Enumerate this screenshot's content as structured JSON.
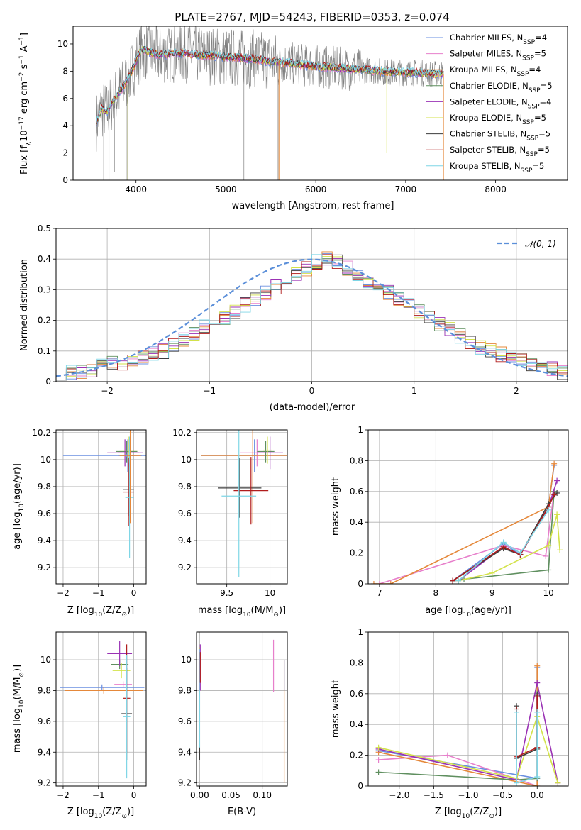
{
  "figure": {
    "title": "PLATE=2767, MJD=54243, FIBERID=0353, z=0.074"
  },
  "colors": {
    "chabrier_miles": "#6a8fe0",
    "salpeter_miles": "#e77fcb",
    "kroupa_miles": "#e5883a",
    "chabrier_elodie": "#5f8f5f",
    "salpeter_elodie": "#9a32b4",
    "kroupa_elodie": "#d3e24a",
    "chabrier_stelib": "#3c3c3c",
    "salpeter_stelib": "#b01c1c",
    "kroupa_stelib": "#7fd6e6",
    "data_gray": "#808080",
    "normal_curve": "#5b8fd9",
    "grid": "#b0b0b0"
  },
  "chart_data": [
    {
      "id": "spectrum",
      "type": "line",
      "xlabel": "wavelength [Angstrom, rest frame]",
      "ylabel": "Flux [f",
      "ylabel_sub": "λ",
      "ylabel_mid": "10",
      "ylabel_sup1": "−17",
      "ylabel_mid2": " erg cm",
      "ylabel_sup2": "−2",
      "ylabel_mid3": " s",
      "ylabel_sup3": "−1",
      "ylabel_mid4": " A",
      "ylabel_sup4": "−1",
      "ylabel_end": "]",
      "xlim": [
        3300,
        8800
      ],
      "ylim": [
        0,
        11.3
      ],
      "xticks": [
        4000,
        5000,
        6000,
        7000,
        8000
      ],
      "yticks": [
        0,
        2,
        4,
        6,
        8,
        10
      ],
      "grid": false,
      "legend_position": "top-right",
      "model_continuum": {
        "x": [
          3560,
          3620,
          3680,
          3740,
          3800,
          3860,
          3920,
          3980,
          4060,
          4150,
          4250,
          4400,
          4550,
          4700,
          4900,
          5100,
          5300,
          5500,
          5700,
          5900,
          6100,
          6300,
          6500,
          6700,
          6900,
          7100,
          7300,
          7420
        ],
        "y": [
          4.3,
          5.2,
          5.0,
          5.8,
          6.3,
          6.9,
          7.6,
          8.4,
          9.6,
          9.4,
          9.2,
          9.3,
          9.3,
          9.2,
          9.1,
          9.0,
          8.9,
          8.7,
          8.6,
          8.4,
          8.3,
          8.2,
          8.1,
          8.0,
          7.9,
          7.9,
          7.8,
          7.8
        ]
      },
      "legend": [
        {
          "pre": "Chabrier MILES, N",
          "sub": "SSP",
          "post": "=4",
          "color_key": "chabrier_miles"
        },
        {
          "pre": "Salpeter MILES, N",
          "sub": "SSP",
          "post": "=5",
          "color_key": "salpeter_miles"
        },
        {
          "pre": "Kroupa MILES, N",
          "sub": "SSP",
          "post": "=4",
          "color_key": "kroupa_miles"
        },
        {
          "pre": "Chabrier ELODIE, N",
          "sub": "SSP",
          "post": "=5",
          "color_key": "chabrier_elodie"
        },
        {
          "pre": "Salpeter ELODIE, N",
          "sub": "SSP",
          "post": "=4",
          "color_key": "salpeter_elodie"
        },
        {
          "pre": "Kroupa ELODIE, N",
          "sub": "SSP",
          "post": "=5",
          "color_key": "kroupa_elodie"
        },
        {
          "pre": "Chabrier STELIB, N",
          "sub": "SSP",
          "post": "=5",
          "color_key": "chabrier_stelib"
        },
        {
          "pre": "Salpeter STELIB, N",
          "sub": "SSP",
          "post": "=5",
          "color_key": "salpeter_stelib"
        },
        {
          "pre": "Kroupa STELIB, N",
          "sub": "SSP",
          "post": "=5",
          "color_key": "kroupa_stelib"
        }
      ]
    },
    {
      "id": "residuals",
      "type": "line",
      "xlabel": "(data-model)/error",
      "ylabel": "Normed distribution",
      "xlim": [
        -2.5,
        2.5
      ],
      "ylim": [
        0,
        0.5
      ],
      "xticks": [
        -2,
        -1,
        0,
        1,
        2
      ],
      "yticks": [
        0.0,
        0.1,
        0.2,
        0.3,
        0.4,
        0.5
      ],
      "grid": true,
      "legend_position": "top-right",
      "legend_label": "𝒩(0, 1)",
      "bin_width": 0.1,
      "bin_start": -2.5,
      "series_ref": {
        "name_key": "kroupa_stelib",
        "values": [
          0.03,
          0.03,
          0.03,
          0.04,
          0.05,
          0.06,
          0.06,
          0.07,
          0.08,
          0.09,
          0.1,
          0.12,
          0.14,
          0.16,
          0.18,
          0.19,
          0.21,
          0.23,
          0.25,
          0.27,
          0.29,
          0.31,
          0.33,
          0.35,
          0.37,
          0.39,
          0.4,
          0.39,
          0.37,
          0.35,
          0.33,
          0.31,
          0.29,
          0.27,
          0.25,
          0.23,
          0.21,
          0.19,
          0.17,
          0.15,
          0.13,
          0.11,
          0.1,
          0.09,
          0.08,
          0.07,
          0.06,
          0.05,
          0.04,
          0.03
        ]
      }
    },
    {
      "id": "age_vs_Z",
      "type": "scatter",
      "xlabel": "Z [log",
      "xlabel_sub": "10",
      "xlabel_post": "(Z/Z",
      "xlabel_sun": "⊙",
      "xlabel_end": ")]",
      "ylabel": "age  [log",
      "ylabel_sub": "10",
      "ylabel_post": "(age/yr)]",
      "xlim": [
        -2.2,
        0.35
      ],
      "ylim": [
        9.08,
        10.22
      ],
      "xticks": [
        -2,
        -1,
        0
      ],
      "yticks": [
        9.2,
        9.4,
        9.6,
        9.8,
        10.0,
        10.2
      ],
      "grid": true,
      "points": [
        {
          "x": -0.17,
          "y": 10.03,
          "xerr": 0.15,
          "yerr": 0.12,
          "color_key": "chabrier_miles"
        },
        {
          "x": -0.15,
          "y": 10.05,
          "xerr": 0.3,
          "yerr": 0.1,
          "color_key": "salpeter_miles"
        },
        {
          "x": -0.1,
          "y": 10.03,
          "xerr": 0.33,
          "yerr": 0.14,
          "color_key": "kroupa_miles"
        },
        {
          "x": -0.2,
          "y": 10.06,
          "xerr": 0.3,
          "yerr": 0.08,
          "color_key": "chabrier_elodie"
        },
        {
          "x": -0.25,
          "y": 10.05,
          "xerr": 0.5,
          "yerr": 0.1,
          "color_key": "salpeter_elodie"
        },
        {
          "x": -0.15,
          "y": 10.07,
          "xerr": 0.25,
          "yerr": 0.1,
          "color_key": "kroupa_elodie"
        },
        {
          "x": -0.15,
          "y": 9.78,
          "xerr": 0.15,
          "yerr": 0.2,
          "color_key": "chabrier_stelib"
        },
        {
          "x": -0.15,
          "y": 9.76,
          "xerr": 0.15,
          "yerr": 0.25,
          "color_key": "salpeter_stelib"
        },
        {
          "x": -0.12,
          "y": 9.72,
          "xerr": 0.12,
          "yerr": 0.45,
          "color_key": "kroupa_stelib"
        },
        {
          "x": -0.2,
          "y": 10.03,
          "xerr": 1.8,
          "yerr": 0.01,
          "color_key": "chabrier_miles"
        },
        {
          "x": -0.1,
          "y": 10.03,
          "xerr": 0.3,
          "yerr": 0.5,
          "color_key": "kroupa_miles"
        }
      ]
    },
    {
      "id": "age_vs_mass",
      "type": "scatter",
      "xlabel": "mass [log",
      "xlabel_sub": "10",
      "xlabel_post": "(M/M",
      "xlabel_sun": "⊙",
      "xlabel_end": ")]",
      "xlim": [
        9.15,
        10.2
      ],
      "ylim": [
        9.08,
        10.22
      ],
      "xticks": [
        9.5,
        10.0
      ],
      "yticks": [
        9.2,
        9.4,
        9.6,
        9.8,
        10.0,
        10.2
      ],
      "grid": true,
      "points": [
        {
          "x": 9.82,
          "y": 10.03,
          "xerr": 0.62,
          "yerr": 0.12,
          "color_key": "chabrier_miles"
        },
        {
          "x": 9.85,
          "y": 10.05,
          "xerr": 0.2,
          "yerr": 0.1,
          "color_key": "salpeter_miles"
        },
        {
          "x": 9.8,
          "y": 10.03,
          "xerr": 0.6,
          "yerr": 0.5,
          "color_key": "kroupa_miles"
        },
        {
          "x": 9.95,
          "y": 10.06,
          "xerr": 0.1,
          "yerr": 0.08,
          "color_key": "chabrier_elodie"
        },
        {
          "x": 10.0,
          "y": 10.05,
          "xerr": 0.15,
          "yerr": 0.12,
          "color_key": "salpeter_elodie"
        },
        {
          "x": 9.97,
          "y": 10.07,
          "xerr": 0.05,
          "yerr": 0.1,
          "color_key": "kroupa_elodie"
        },
        {
          "x": 9.65,
          "y": 9.79,
          "xerr": 0.25,
          "yerr": 0.22,
          "color_key": "chabrier_stelib"
        },
        {
          "x": 9.78,
          "y": 9.77,
          "xerr": 0.2,
          "yerr": 0.25,
          "color_key": "salpeter_stelib"
        },
        {
          "x": 9.64,
          "y": 9.73,
          "xerr": 0.2,
          "yerr": 0.6,
          "color_key": "kroupa_stelib"
        }
      ]
    },
    {
      "id": "weight_vs_age",
      "type": "line",
      "xlabel": "age  [log",
      "xlabel_sub": "10",
      "xlabel_post": "(age/yr)]",
      "ylabel": "mass weight",
      "xlim": [
        6.8,
        10.35
      ],
      "ylim": [
        0,
        1.0
      ],
      "xticks": [
        7,
        8,
        9,
        10
      ],
      "yticks": [
        0.0,
        0.2,
        0.4,
        0.6,
        0.8,
        1.0
      ],
      "grid": true,
      "series": [
        {
          "color_key": "chabrier_miles",
          "x": [
            8.3,
            9.2,
            9.5,
            10.0,
            10.1
          ],
          "y": [
            0.02,
            0.26,
            0.19,
            0.5,
            0.77
          ]
        },
        {
          "color_key": "salpeter_miles",
          "x": [
            7.0,
            9.2,
            9.95,
            10.1
          ],
          "y": [
            0.0,
            0.25,
            0.18,
            0.6
          ]
        },
        {
          "color_key": "kroupa_miles",
          "x": [
            6.9,
            7.2,
            10.0,
            10.1
          ],
          "y": [
            0.0,
            0.0,
            0.5,
            0.78
          ]
        },
        {
          "color_key": "chabrier_elodie",
          "x": [
            8.3,
            8.5,
            10.0,
            10.1
          ],
          "y": [
            0.02,
            0.03,
            0.09,
            0.6
          ]
        },
        {
          "color_key": "salpeter_elodie",
          "x": [
            8.4,
            9.2,
            9.5,
            10.0,
            10.15
          ],
          "y": [
            0.02,
            0.24,
            0.19,
            0.5,
            0.67
          ]
        },
        {
          "color_key": "kroupa_elodie",
          "x": [
            8.4,
            9.0,
            10.0,
            10.15,
            10.2
          ],
          "y": [
            0.02,
            0.07,
            0.25,
            0.45,
            0.22
          ]
        },
        {
          "color_key": "chabrier_stelib",
          "x": [
            8.3,
            9.2,
            9.5,
            10.0,
            10.15
          ],
          "y": [
            0.02,
            0.23,
            0.19,
            0.52,
            0.59
          ]
        },
        {
          "color_key": "salpeter_stelib",
          "x": [
            8.3,
            9.2,
            9.5,
            10.0,
            10.1
          ],
          "y": [
            0.02,
            0.24,
            0.19,
            0.5,
            0.58
          ]
        },
        {
          "color_key": "kroupa_stelib",
          "x": [
            8.4,
            9.2,
            9.5,
            10.0
          ],
          "y": [
            0.02,
            0.27,
            0.2,
            0.48
          ]
        }
      ]
    },
    {
      "id": "mass_vs_Z",
      "type": "scatter",
      "xlabel": "Z [log",
      "xlabel_sub": "10",
      "xlabel_post": "(Z/Z",
      "xlabel_sun": "⊙",
      "xlabel_end": ")]",
      "ylabel": "mass [log",
      "ylabel_sub": "10",
      "ylabel_post": "(M/M",
      "ylabel_sun": "⊙",
      "ylabel_end": ")]",
      "xlim": [
        -2.2,
        0.35
      ],
      "ylim": [
        9.18,
        10.18
      ],
      "xticks": [
        -2,
        -1,
        0
      ],
      "yticks": [
        9.2,
        9.4,
        9.6,
        9.8,
        10.0
      ],
      "grid": true,
      "points": [
        {
          "x": -0.9,
          "y": 9.82,
          "xerr": 1.2,
          "yerr": 0.02,
          "color_key": "chabrier_miles"
        },
        {
          "x": -0.85,
          "y": 9.8,
          "xerr": 1.1,
          "yerr": 0.02,
          "color_key": "kroupa_miles"
        },
        {
          "x": -0.3,
          "y": 9.84,
          "xerr": 0.25,
          "yerr": 0.02,
          "color_key": "salpeter_miles"
        },
        {
          "x": -0.4,
          "y": 9.97,
          "xerr": 0.25,
          "yerr": 0.03,
          "color_key": "chabrier_elodie"
        },
        {
          "x": -0.4,
          "y": 10.04,
          "xerr": 0.35,
          "yerr": 0.08,
          "color_key": "salpeter_elodie"
        },
        {
          "x": -0.35,
          "y": 9.93,
          "xerr": 0.25,
          "yerr": 0.05,
          "color_key": "kroupa_elodie"
        },
        {
          "x": -0.2,
          "y": 9.65,
          "xerr": 0.15,
          "yerr": 0.3,
          "color_key": "chabrier_stelib"
        },
        {
          "x": -0.2,
          "y": 9.75,
          "xerr": 0.1,
          "yerr": 0.35,
          "color_key": "salpeter_stelib"
        },
        {
          "x": -0.2,
          "y": 9.63,
          "xerr": 0.1,
          "yerr": 0.4,
          "color_key": "kroupa_stelib"
        }
      ]
    },
    {
      "id": "mass_vs_ebv",
      "type": "scatter",
      "xlabel": "E(B-V)",
      "xlim": [
        -0.005,
        0.14
      ],
      "ylim": [
        9.18,
        10.18
      ],
      "xticks": [
        0.0,
        0.05,
        0.1
      ],
      "xtick_labels": [
        "0.00",
        "0.05",
        "0.10"
      ],
      "yticks": [
        9.2,
        9.4,
        9.6,
        9.8,
        10.0
      ],
      "grid": true,
      "points": [
        {
          "x": 0.0,
          "y": 9.7,
          "xerr": 0,
          "yerr": 0.35,
          "color_key": "chabrier_stelib"
        },
        {
          "x": 0.0,
          "y": 9.8,
          "xerr": 0,
          "yerr": 0.28,
          "color_key": "kroupa_elodie"
        },
        {
          "x": 0.0,
          "y": 9.75,
          "xerr": 0,
          "yerr": 0.32,
          "color_key": "kroupa_stelib"
        },
        {
          "x": 0.001,
          "y": 9.95,
          "xerr": 0,
          "yerr": 0.15,
          "color_key": "salpeter_elodie"
        },
        {
          "x": 0.001,
          "y": 9.95,
          "xerr": 0,
          "yerr": 0.1,
          "color_key": "salpeter_stelib"
        },
        {
          "x": 0.118,
          "y": 9.96,
          "xerr": 0,
          "yerr": 0.17,
          "color_key": "salpeter_miles"
        },
        {
          "x": 0.135,
          "y": 9.6,
          "xerr": 0,
          "yerr": 0.4,
          "color_key": "kroupa_miles"
        },
        {
          "x": 0.135,
          "y": 9.9,
          "xerr": 0,
          "yerr": 0.1,
          "color_key": "chabrier_miles"
        }
      ]
    },
    {
      "id": "weight_vs_Z",
      "type": "line",
      "xlabel": "Z [log",
      "xlabel_sub": "10",
      "xlabel_post": "(Z/Z",
      "xlabel_sun": "⊙",
      "xlabel_end": ")]",
      "ylabel": "mass weight",
      "xlim": [
        -2.45,
        0.45
      ],
      "ylim": [
        0,
        1.0
      ],
      "xticks": [
        -2.0,
        -1.5,
        -1.0,
        -0.5,
        0.0
      ],
      "xtick_labels": [
        "−2.0",
        "−1.5",
        "−1.0",
        "−0.5",
        "0.0"
      ],
      "yticks": [
        0.0,
        0.2,
        0.4,
        0.6,
        0.8,
        1.0
      ],
      "grid": true,
      "series": [
        {
          "color_key": "chabrier_miles",
          "x": [
            -2.3,
            0.0,
            0.0
          ],
          "y": [
            0.23,
            0.05,
            0.77
          ]
        },
        {
          "color_key": "salpeter_miles",
          "x": [
            -2.3,
            -1.3,
            0.0,
            0.0
          ],
          "y": [
            0.17,
            0.2,
            0.0,
            0.6
          ]
        },
        {
          "color_key": "kroupa_miles",
          "x": [
            -2.3,
            0.0,
            0.0
          ],
          "y": [
            0.22,
            0.0,
            0.78
          ]
        },
        {
          "color_key": "chabrier_elodie",
          "x": [
            -2.3,
            -0.3,
            0.0,
            0.0
          ],
          "y": [
            0.09,
            0.04,
            0.05,
            0.6
          ]
        },
        {
          "color_key": "salpeter_elodie",
          "x": [
            -2.3,
            -0.3,
            0.0,
            0.3
          ],
          "y": [
            0.24,
            0.04,
            0.67,
            0.02
          ]
        },
        {
          "color_key": "kroupa_elodie",
          "x": [
            -2.3,
            -0.3,
            0.0,
            0.3
          ],
          "y": [
            0.25,
            0.05,
            0.45,
            0.02
          ]
        },
        {
          "color_key": "chabrier_stelib",
          "x": [
            -0.3,
            -0.3,
            0.0,
            0.0
          ],
          "y": [
            0.52,
            0.18,
            0.24,
            0.59
          ]
        },
        {
          "color_key": "salpeter_stelib",
          "x": [
            -0.3,
            -0.3,
            0.0,
            0.0
          ],
          "y": [
            0.5,
            0.19,
            0.25,
            0.58
          ]
        },
        {
          "color_key": "kroupa_stelib",
          "x": [
            -0.3,
            -0.3,
            0.0,
            0.0
          ],
          "y": [
            0.48,
            0.02,
            0.06,
            0.48
          ]
        }
      ]
    }
  ]
}
